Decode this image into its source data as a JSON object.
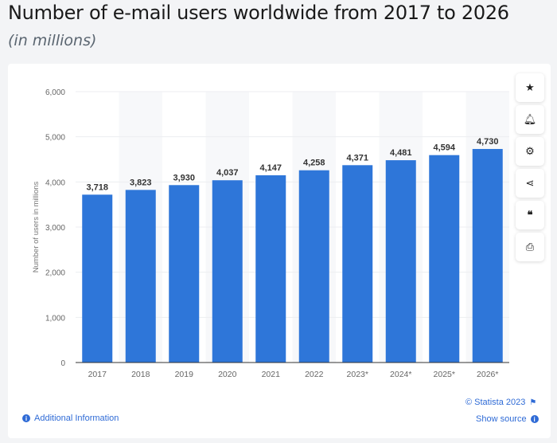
{
  "header": {
    "title": "Number of e-mail users worldwide from 2017 to 2026",
    "subtitle": "(in millions)"
  },
  "chart_data": {
    "type": "bar",
    "title": "Number of e-mail users worldwide from 2017 to 2026",
    "subtitle": "(in millions)",
    "xlabel": "",
    "ylabel": "Number of users in millions",
    "categories": [
      "2017",
      "2018",
      "2019",
      "2020",
      "2021",
      "2022",
      "2023*",
      "2024*",
      "2025*",
      "2026*"
    ],
    "values": [
      3718,
      3823,
      3930,
      4037,
      4147,
      4258,
      4371,
      4481,
      4594,
      4730
    ],
    "value_labels": [
      "3,718",
      "3,823",
      "3,930",
      "4,037",
      "4,147",
      "4,258",
      "4,371",
      "4,481",
      "4,594",
      "4,730"
    ],
    "ylim": [
      0,
      6000
    ],
    "yticks": [
      0,
      1000,
      2000,
      3000,
      4000,
      5000,
      6000
    ],
    "ytick_labels": [
      "0",
      "1,000",
      "2,000",
      "3,000",
      "4,000",
      "5,000",
      "6,000"
    ],
    "grid": true,
    "bar_color": "#2e76d9"
  },
  "toolbar": {
    "icons": [
      "star-icon",
      "bell-icon",
      "gear-icon",
      "share-icon",
      "quote-icon",
      "print-icon"
    ]
  },
  "footer": {
    "copyright": "© Statista 2023",
    "show_source": "Show source",
    "additional_info": "Additional Information"
  }
}
